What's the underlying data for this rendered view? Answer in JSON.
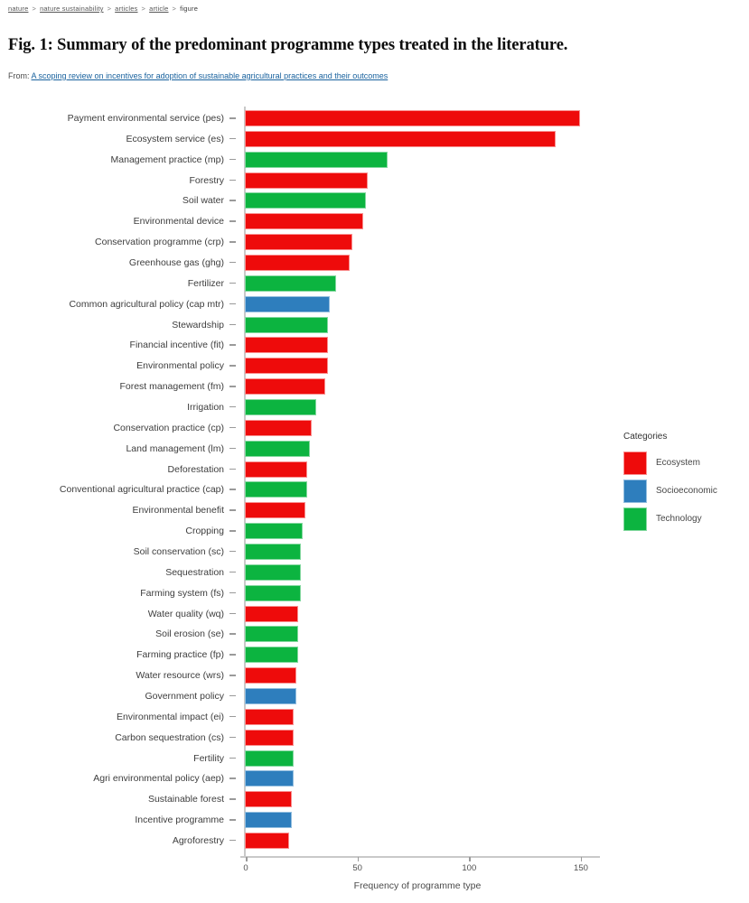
{
  "breadcrumb": {
    "separator": ">",
    "items": [
      {
        "label": "nature",
        "link": true
      },
      {
        "label": "nature sustainability",
        "link": true
      },
      {
        "label": "articles",
        "link": true
      },
      {
        "label": "article",
        "link": true
      },
      {
        "label": "figure",
        "link": false
      }
    ]
  },
  "header": {
    "title": "Fig. 1: Summary of the predominant programme types treated in the literature.",
    "from_label": "From:",
    "from_link": "A scoping review on incentives for adoption of sustainable agricultural practices and their outcomes"
  },
  "chart_data": {
    "type": "bar",
    "orientation": "horizontal",
    "title": "",
    "xlabel": "Frequency of programme type",
    "ylabel": "",
    "xlim": [
      0,
      157
    ],
    "xticks": [
      0,
      50,
      100,
      150
    ],
    "grid": false,
    "legend_title": "Categories",
    "legend_position": "right-middle",
    "legend_entries": [
      "Ecosystem",
      "Socioeconomic",
      "Technology"
    ],
    "category_colors": {
      "Ecosystem": {
        "fill": "#ee0b0b",
        "border": "#f98f8f"
      },
      "Socioeconomic": {
        "fill": "#2e7ebd",
        "border": "#93bedf"
      },
      "Technology": {
        "fill": "#0cb440",
        "border": "#84d8a0"
      }
    },
    "bars": [
      {
        "label": "Payment environmental service (pes)",
        "value": 150,
        "category": "Ecosystem"
      },
      {
        "label": "Ecosystem service (es)",
        "value": 139,
        "category": "Ecosystem"
      },
      {
        "label": "Management practice (mp)",
        "value": 64,
        "category": "Technology"
      },
      {
        "label": "Forestry",
        "value": 55,
        "category": "Ecosystem"
      },
      {
        "label": "Soil water",
        "value": 54,
        "category": "Technology"
      },
      {
        "label": "Environmental device",
        "value": 53,
        "category": "Ecosystem"
      },
      {
        "label": "Conservation programme (crp)",
        "value": 48,
        "category": "Ecosystem"
      },
      {
        "label": "Greenhouse gas (ghg)",
        "value": 47,
        "category": "Ecosystem"
      },
      {
        "label": "Fertilizer",
        "value": 41,
        "category": "Technology"
      },
      {
        "label": "Common agricultural policy (cap mtr)",
        "value": 38,
        "category": "Socioeconomic"
      },
      {
        "label": "Stewardship",
        "value": 37,
        "category": "Technology"
      },
      {
        "label": "Financial incentive (fit)",
        "value": 37,
        "category": "Ecosystem"
      },
      {
        "label": "Environmental policy",
        "value": 37,
        "category": "Ecosystem"
      },
      {
        "label": "Forest management (fm)",
        "value": 36,
        "category": "Ecosystem"
      },
      {
        "label": "Irrigation",
        "value": 32,
        "category": "Technology"
      },
      {
        "label": "Conservation practice (cp)",
        "value": 30,
        "category": "Ecosystem"
      },
      {
        "label": "Land management (lm)",
        "value": 29,
        "category": "Technology"
      },
      {
        "label": "Deforestation",
        "value": 28,
        "category": "Ecosystem"
      },
      {
        "label": "Conventional agricultural practice (cap)",
        "value": 28,
        "category": "Technology"
      },
      {
        "label": "Environmental benefit",
        "value": 27,
        "category": "Ecosystem"
      },
      {
        "label": "Cropping",
        "value": 26,
        "category": "Technology"
      },
      {
        "label": "Soil conservation (sc)",
        "value": 25,
        "category": "Technology"
      },
      {
        "label": "Sequestration",
        "value": 25,
        "category": "Technology"
      },
      {
        "label": "Farming system (fs)",
        "value": 25,
        "category": "Technology"
      },
      {
        "label": "Water quality (wq)",
        "value": 24,
        "category": "Ecosystem"
      },
      {
        "label": "Soil erosion (se)",
        "value": 24,
        "category": "Technology"
      },
      {
        "label": "Farming practice (fp)",
        "value": 24,
        "category": "Technology"
      },
      {
        "label": "Water resource (wrs)",
        "value": 23,
        "category": "Ecosystem"
      },
      {
        "label": "Government policy",
        "value": 23,
        "category": "Socioeconomic"
      },
      {
        "label": "Environmental impact (ei)",
        "value": 22,
        "category": "Ecosystem"
      },
      {
        "label": "Carbon sequestration (cs)",
        "value": 22,
        "category": "Ecosystem"
      },
      {
        "label": "Fertility",
        "value": 22,
        "category": "Technology"
      },
      {
        "label": "Agri environmental policy (aep)",
        "value": 22,
        "category": "Socioeconomic"
      },
      {
        "label": "Sustainable forest",
        "value": 21,
        "category": "Ecosystem"
      },
      {
        "label": "Incentive programme",
        "value": 21,
        "category": "Socioeconomic"
      },
      {
        "label": "Agroforestry",
        "value": 20,
        "category": "Ecosystem"
      }
    ]
  }
}
